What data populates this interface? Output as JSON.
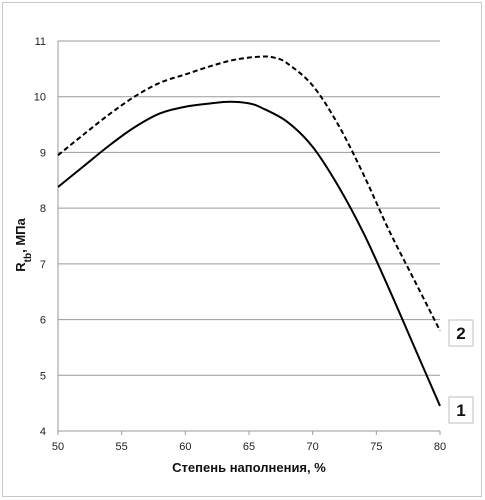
{
  "chart_data": {
    "type": "line",
    "xlabel": "Степень наполнения, %",
    "ylabel_main": "R",
    "ylabel_sub": "tb",
    "ylabel_rest": ", МПа",
    "xlim": [
      50,
      80
    ],
    "ylim": [
      4,
      11
    ],
    "x_ticks": [
      50,
      55,
      60,
      65,
      70,
      75,
      80
    ],
    "y_ticks": [
      4,
      5,
      6,
      7,
      8,
      9,
      10,
      11
    ],
    "grid": "horizontal",
    "series": [
      {
        "name": "1",
        "style": "solid",
        "color": "#000000",
        "x": [
          50,
          52,
          54,
          56,
          58,
          60,
          62,
          63.5,
          65,
          66,
          68,
          70,
          72,
          74,
          76,
          78,
          80
        ],
        "y": [
          8.38,
          8.75,
          9.12,
          9.45,
          9.7,
          9.82,
          9.88,
          9.91,
          9.88,
          9.8,
          9.55,
          9.1,
          8.4,
          7.55,
          6.55,
          5.5,
          4.45
        ]
      },
      {
        "name": "2",
        "style": "dashed",
        "color": "#000000",
        "x": [
          50,
          52,
          54,
          56,
          58,
          60,
          62,
          64,
          66,
          67,
          68,
          70,
          72,
          74,
          76,
          78,
          80
        ],
        "y": [
          8.95,
          9.32,
          9.68,
          10.0,
          10.25,
          10.4,
          10.55,
          10.67,
          10.72,
          10.7,
          10.6,
          10.2,
          9.5,
          8.6,
          7.6,
          6.7,
          5.8
        ]
      }
    ]
  }
}
